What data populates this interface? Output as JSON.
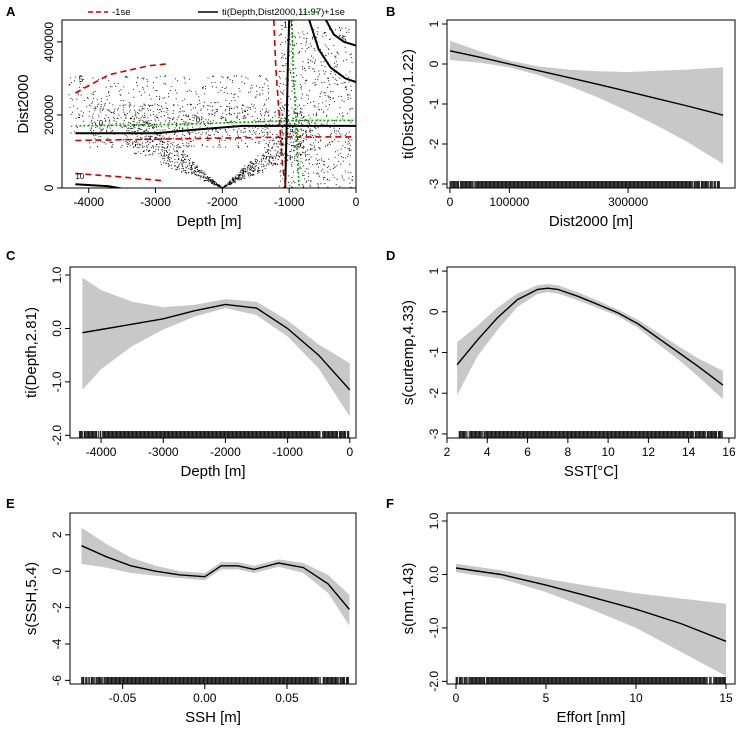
{
  "chart_data": [
    {
      "id": "A",
      "type": "scatter",
      "panel_label": "A",
      "title": "",
      "xlabel": "Depth [m]",
      "ylabel": "Dist2000",
      "xlim": [
        -4400,
        0
      ],
      "ylim": [
        0,
        460000
      ],
      "xticks": [
        -4000,
        -3000,
        -2000,
        -1000,
        0
      ],
      "xtick_labels": [
        "-4000",
        "-3000",
        "-2000",
        "-1000",
        "0"
      ],
      "yticks": [
        0,
        200000,
        400000
      ],
      "ytick_labels": [
        "0",
        "200000",
        "400000"
      ],
      "legend": [
        {
          "label": "-1se",
          "style": "dashed",
          "color": "#cc0000"
        },
        {
          "label": "ti(Depth,Dist2000,11.97)",
          "style": "solid",
          "color": "#000000"
        },
        {
          "label": "+1se",
          "style": "dotted",
          "color": "#00aa00"
        }
      ],
      "contour_labels": [
        "5",
        "0",
        "-10",
        "0",
        "10",
        "-5"
      ],
      "contours": [
        {
          "name": "zero-contour",
          "style": "solid",
          "color": "#000000",
          "points": [
            [
              -4200,
              150000
            ],
            [
              -3000,
              150000
            ],
            [
              -2400,
              160000
            ],
            [
              -1700,
              170000
            ],
            [
              -900,
              170000
            ],
            [
              0,
              170000
            ]
          ]
        },
        {
          "name": "zero-contour-vertical",
          "style": "solid",
          "color": "#000000",
          "points": [
            [
              -1060,
              0
            ],
            [
              -1040,
              150000
            ],
            [
              -1020,
              330000
            ],
            [
              -1000,
              460000
            ]
          ]
        },
        {
          "name": "upper-se-band",
          "style": "dotted",
          "color": "#00aa00",
          "points": [
            [
              -4200,
              170000
            ],
            [
              -2500,
              175000
            ],
            [
              -900,
              185000
            ],
            [
              0,
              185000
            ]
          ]
        },
        {
          "name": "lower-se-band",
          "style": "dashed",
          "color": "#cc0000",
          "points": [
            [
              -4200,
              130000
            ],
            [
              -2500,
              135000
            ],
            [
              -900,
              140000
            ],
            [
              0,
              140000
            ]
          ]
        },
        {
          "name": "top-left-dashed",
          "style": "dashed",
          "color": "#cc0000",
          "points": [
            [
              -4200,
              260000
            ],
            [
              -3700,
              310000
            ],
            [
              -3100,
              335000
            ],
            [
              -2800,
              340000
            ]
          ]
        },
        {
          "name": "upper-right-dashed",
          "style": "dashed",
          "color": "#cc0000",
          "points": [
            [
              -1230,
              460000
            ],
            [
              -1200,
              330000
            ],
            [
              -1150,
              200000
            ],
            [
              -1100,
              60000
            ],
            [
              -1050,
              0
            ]
          ]
        },
        {
          "name": "upper-right-dotted",
          "style": "dotted",
          "color": "#00aa00",
          "points": [
            [
              -960,
              460000
            ],
            [
              -940,
              330000
            ],
            [
              -900,
              200000
            ],
            [
              -870,
              60000
            ],
            [
              -850,
              0
            ]
          ]
        },
        {
          "name": "corner-curve-1",
          "style": "solid",
          "color": "#000000",
          "points": [
            [
              -700,
              460000
            ],
            [
              -560,
              380000
            ],
            [
              -380,
              330000
            ],
            [
              -160,
              300000
            ],
            [
              0,
              290000
            ]
          ]
        },
        {
          "name": "corner-curve-2",
          "style": "solid",
          "color": "#000000",
          "points": [
            [
              -450,
              460000
            ],
            [
              -330,
              420000
            ],
            [
              -180,
              400000
            ],
            [
              0,
              390000
            ]
          ]
        },
        {
          "name": "bottom-left-contour",
          "style": "solid",
          "color": "#000000",
          "points": [
            [
              -4200,
              10000
            ],
            [
              -3700,
              5000
            ],
            [
              -3400,
              -5000
            ]
          ]
        },
        {
          "name": "bottom-left-dashed",
          "style": "dashed",
          "color": "#cc0000",
          "points": [
            [
              -4200,
              40000
            ],
            [
              -3500,
              30000
            ],
            [
              -2900,
              20000
            ]
          ]
        }
      ]
    },
    {
      "id": "B",
      "type": "line",
      "panel_label": "B",
      "title": "",
      "xlabel": "Dist2000 [m]",
      "ylabel": "ti(Dist2000,1.22)",
      "xlim": [
        -5000,
        480000
      ],
      "ylim": [
        -3.1,
        1.1
      ],
      "xticks": [
        0,
        100000,
        300000
      ],
      "xtick_labels": [
        "0",
        "100000",
        "300000"
      ],
      "yticks": [
        1,
        0,
        -1,
        -2,
        -3
      ],
      "ytick_labels": [
        "1",
        "0",
        "-1",
        "-2",
        "-3"
      ],
      "x": [
        0,
        50000,
        100000,
        150000,
        200000,
        250000,
        300000,
        350000,
        400000,
        460000
      ],
      "fit": [
        0.33,
        0.17,
        0.0,
        -0.17,
        -0.34,
        -0.51,
        -0.69,
        -0.87,
        -1.05,
        -1.28
      ],
      "upper": [
        0.58,
        0.32,
        0.08,
        -0.06,
        -0.14,
        -0.18,
        -0.2,
        -0.17,
        -0.14,
        -0.08
      ],
      "lower": [
        0.1,
        0.03,
        -0.08,
        -0.28,
        -0.54,
        -0.84,
        -1.18,
        -1.55,
        -1.95,
        -2.5
      ],
      "rug_range": [
        0,
        455000
      ]
    },
    {
      "id": "C",
      "type": "line",
      "panel_label": "C",
      "title": "",
      "xlabel": "Depth [m]",
      "ylabel": "ti(Depth,2.81)",
      "xlim": [
        -4500,
        100
      ],
      "ylim": [
        -2.05,
        1.15
      ],
      "xticks": [
        -4000,
        -3000,
        -2000,
        -1000,
        0
      ],
      "xtick_labels": [
        "-4000",
        "-3000",
        "-2000",
        "-1000",
        "0"
      ],
      "yticks": [
        1.0,
        0.0,
        -1.0,
        -2.0
      ],
      "ytick_labels": [
        "1.0",
        "0.0",
        "-1.0",
        "-2.0"
      ],
      "x": [
        -4300,
        -4000,
        -3500,
        -3000,
        -2500,
        -2000,
        -1500,
        -1000,
        -500,
        0
      ],
      "fit": [
        -0.08,
        -0.02,
        0.08,
        0.18,
        0.33,
        0.45,
        0.38,
        0.0,
        -0.5,
        -1.15
      ],
      "upper": [
        0.95,
        0.72,
        0.5,
        0.4,
        0.44,
        0.55,
        0.5,
        0.15,
        -0.3,
        -0.65
      ],
      "lower": [
        -1.15,
        -0.76,
        -0.33,
        -0.02,
        0.22,
        0.38,
        0.25,
        -0.15,
        -0.75,
        -1.65
      ],
      "rug_range": [
        -4350,
        0
      ]
    },
    {
      "id": "D",
      "type": "line",
      "panel_label": "D",
      "title": "",
      "xlabel": "SST[°C]",
      "ylabel": "s(curtemp,4.33)",
      "xlim": [
        2,
        16.3
      ],
      "ylim": [
        -3.1,
        1.1
      ],
      "xticks": [
        2,
        4,
        6,
        8,
        10,
        12,
        14,
        16
      ],
      "xtick_labels": [
        "2",
        "4",
        "6",
        "8",
        "10",
        "12",
        "14",
        "16"
      ],
      "yticks": [
        1,
        0,
        -1,
        -2,
        -3
      ],
      "ytick_labels": [
        "1",
        "0",
        "-1",
        "-2",
        "-3"
      ],
      "x": [
        2.5,
        3.5,
        4.5,
        5.5,
        6.5,
        7.0,
        7.5,
        8.5,
        9.5,
        10.5,
        11.5,
        12.5,
        13.5,
        14.5,
        15.7
      ],
      "fit": [
        -1.3,
        -0.7,
        -0.15,
        0.3,
        0.55,
        0.58,
        0.55,
        0.38,
        0.18,
        -0.03,
        -0.3,
        -0.65,
        -1.0,
        -1.35,
        -1.8
      ],
      "upper": [
        -0.75,
        -0.35,
        0.1,
        0.45,
        0.65,
        0.68,
        0.65,
        0.48,
        0.27,
        0.05,
        -0.2,
        -0.52,
        -0.85,
        -1.15,
        -1.45
      ],
      "lower": [
        -2.05,
        -1.1,
        -0.45,
        0.12,
        0.44,
        0.48,
        0.45,
        0.28,
        0.09,
        -0.11,
        -0.4,
        -0.8,
        -1.18,
        -1.6,
        -2.15
      ],
      "rug_range": [
        2.6,
        15.7
      ]
    },
    {
      "id": "E",
      "type": "line",
      "panel_label": "E",
      "title": "",
      "xlabel": "SSH [m]",
      "ylabel": "s(SSH,5.4)",
      "xlim": [
        -0.082,
        0.092
      ],
      "ylim": [
        -6.2,
        3.2
      ],
      "xticks": [
        -0.05,
        0.0,
        0.05
      ],
      "xtick_labels": [
        "-0.05",
        "0.00",
        "0.05"
      ],
      "yticks": [
        2,
        0,
        -2,
        -4,
        -6
      ],
      "ytick_labels": [
        "2",
        "0",
        "-2",
        "-4",
        "-6"
      ],
      "x": [
        -0.075,
        -0.06,
        -0.045,
        -0.03,
        -0.015,
        0.0,
        0.01,
        0.02,
        0.03,
        0.045,
        0.06,
        0.075,
        0.088
      ],
      "fit": [
        1.4,
        0.8,
        0.3,
        0.0,
        -0.2,
        -0.3,
        0.3,
        0.3,
        0.1,
        0.45,
        0.2,
        -0.7,
        -2.1
      ],
      "upper": [
        2.4,
        1.5,
        0.75,
        0.3,
        0.0,
        -0.1,
        0.5,
        0.5,
        0.3,
        0.65,
        0.45,
        -0.2,
        -1.3
      ],
      "lower": [
        0.4,
        0.2,
        -0.1,
        -0.25,
        -0.38,
        -0.5,
        0.1,
        0.1,
        -0.1,
        0.25,
        -0.1,
        -1.2,
        -3.0
      ],
      "rug_range": [
        -0.075,
        0.088
      ]
    },
    {
      "id": "F",
      "type": "line",
      "panel_label": "F",
      "title": "",
      "xlabel": "Effort [nm]",
      "ylabel": "s(nm,1.43)",
      "xlim": [
        -0.5,
        15.5
      ],
      "ylim": [
        -2.05,
        1.15
      ],
      "xticks": [
        0,
        5,
        10,
        15
      ],
      "xtick_labels": [
        "0",
        "5",
        "10",
        "15"
      ],
      "yticks": [
        1.0,
        0.0,
        -1.0,
        -2.0
      ],
      "ytick_labels": [
        "1.0",
        "0.0",
        "-1.0",
        "-2.0"
      ],
      "x": [
        0,
        2.5,
        5,
        7.5,
        10,
        12.5,
        15
      ],
      "fit": [
        0.12,
        0.0,
        -0.2,
        -0.42,
        -0.65,
        -0.92,
        -1.25
      ],
      "upper": [
        0.2,
        0.08,
        -0.08,
        -0.22,
        -0.35,
        -0.45,
        -0.55
      ],
      "lower": [
        0.04,
        -0.08,
        -0.33,
        -0.65,
        -1.0,
        -1.45,
        -1.9
      ],
      "rug_range": [
        0,
        15
      ]
    }
  ]
}
